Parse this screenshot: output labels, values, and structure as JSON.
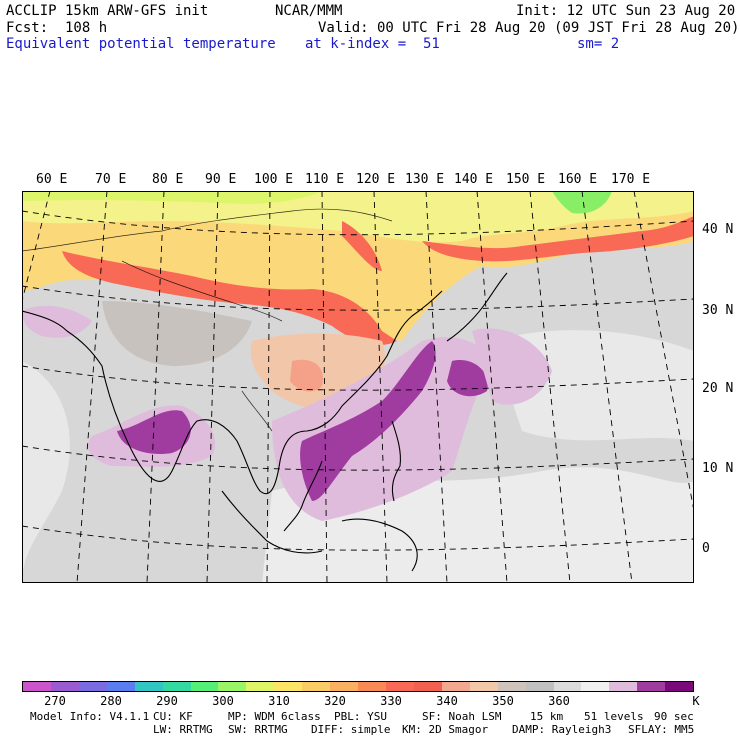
{
  "header": {
    "line1_left": "ACCLIP 15km ARW-GFS init",
    "line1_center": "NCAR/MMM",
    "line1_right": "Init: 12 UTC Sun 23 Aug 20",
    "line2_left": "Fcst:  108 h",
    "line2_right": "Valid: 00 UTC Fri 28 Aug 20 (09 JST Fri 28 Aug 20)",
    "line3_left": "Equivalent potential temperature",
    "line3_center": "at k-index =  51",
    "line3_right": "sm= 2"
  },
  "map": {
    "longitude_labels": [
      "60 E",
      "70 E",
      "80 E",
      "90 E",
      "100 E",
      "110 E",
      "120 E",
      "130 E",
      "140 E",
      "150 E",
      "160 E",
      "170 E"
    ],
    "latitude_labels": [
      "40 N",
      "30 N",
      "20 N",
      "10 N",
      "0"
    ]
  },
  "colorbar": {
    "colors": [
      "#cc55cc",
      "#9a5ad0",
      "#7a6be0",
      "#5a7ef0",
      "#33c4c4",
      "#33d9a0",
      "#55ee77",
      "#99f566",
      "#ddf566",
      "#fbe466",
      "#f9cc66",
      "#f9b060",
      "#fa8a55",
      "#f86a55",
      "#f26050",
      "#f5a890",
      "#f2c8a8",
      "#cfc4bc",
      "#c0c0c0",
      "#dcdcdc",
      "#f0f0f0",
      "#e0bcdc",
      "#a03ca0",
      "#7a0a7a"
    ],
    "labels": [
      "270",
      "280",
      "290",
      "300",
      "310",
      "320",
      "330",
      "340",
      "350",
      "360"
    ],
    "unit": "K"
  },
  "model_info": {
    "line1": [
      "Model Info: V4.1.1",
      "CU: KF",
      "MP: WDM 6class",
      "PBL: YSU",
      "SF: Noah LSM",
      "15 km",
      "51 levels",
      "90 sec"
    ],
    "line2": [
      "LW: RRTMG",
      "SW: RRTMG",
      "DIFF: simple",
      "KM: 2D Smagor",
      "DAMP: Rayleigh3",
      "SFLAY: MM5"
    ]
  }
}
